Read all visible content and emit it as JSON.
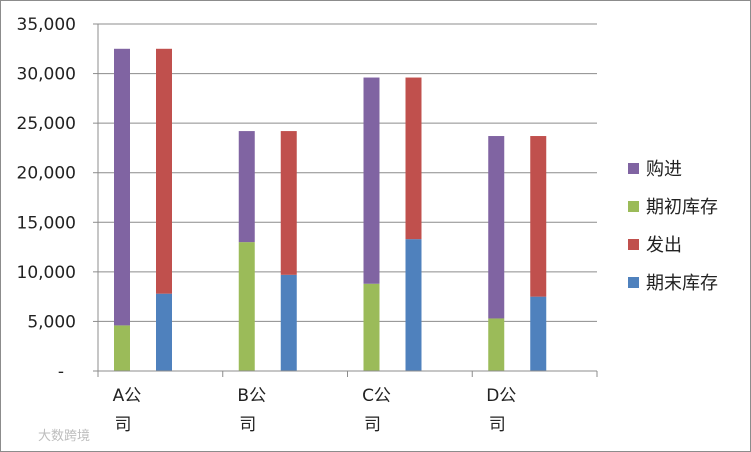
{
  "chart_data": {
    "type": "bar",
    "stacked": true,
    "categories": [
      "A公司",
      "B公司",
      "C公司",
      "D公司"
    ],
    "stacks": [
      {
        "stack": "left",
        "series": [
          {
            "name": "期初库存",
            "color": "#9BBB59",
            "values": [
              4600,
              13000,
              8800,
              5300
            ]
          },
          {
            "name": "购进",
            "color": "#8064A2",
            "values": [
              27900,
              11200,
              20800,
              18400
            ]
          }
        ]
      },
      {
        "stack": "right",
        "series": [
          {
            "name": "期末库存",
            "color": "#4F81BD",
            "values": [
              7800,
              9700,
              13300,
              7500
            ]
          },
          {
            "name": "发出",
            "color": "#C0504D",
            "values": [
              24700,
              14500,
              16300,
              16200
            ]
          }
        ]
      }
    ],
    "ylim": [
      0,
      35000
    ],
    "yticks": [
      0,
      5000,
      10000,
      15000,
      20000,
      25000,
      30000,
      35000
    ],
    "ytick_labels": [
      "-",
      "5,000",
      "10,000",
      "15,000",
      "20,000",
      "25,000",
      "30,000",
      "35,000"
    ],
    "grid": true,
    "legend_position": "right",
    "legend": [
      {
        "name": "购进",
        "color": "#8064A2"
      },
      {
        "name": "期初库存",
        "color": "#9BBB59"
      },
      {
        "name": "发出",
        "color": "#C0504D"
      },
      {
        "name": "期末库存",
        "color": "#4F81BD"
      }
    ],
    "title": "",
    "xlabel": "",
    "ylabel": ""
  },
  "watermark": "大数跨境"
}
